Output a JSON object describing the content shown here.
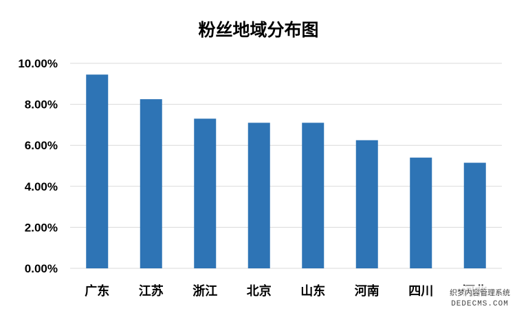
{
  "chart_data": {
    "type": "bar",
    "title": "粉丝地域分布图",
    "categories": [
      "广东",
      "江苏",
      "浙江",
      "北京",
      "山东",
      "河南",
      "四川",
      "河北"
    ],
    "values": [
      9.45,
      8.25,
      7.3,
      7.1,
      7.1,
      6.25,
      5.4,
      5.15
    ],
    "value_unit": "%",
    "ylim": [
      0,
      10
    ],
    "yticks": [
      "0.00%",
      "2.00%",
      "4.00%",
      "6.00%",
      "8.00%",
      "10.00%"
    ],
    "grid": true,
    "legend": "none",
    "bar_color": "#2e74b5"
  },
  "watermark": {
    "line1": "织梦内容管理系统",
    "line2": "DEDECMS.COM"
  }
}
